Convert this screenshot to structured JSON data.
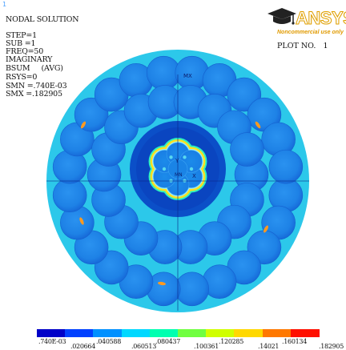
{
  "corner_mark": "1",
  "legend": {
    "lines": [
      "NODAL SOLUTION",
      "STEP=1",
      "SUB =1",
      "FREQ=50",
      "IMAGINARY",
      "BSUM     (AVG)",
      "RSYS=0",
      "SMN =.740E-03",
      "SMX =.182905"
    ]
  },
  "logo": {
    "word": "ANSYS",
    "subtitle": "Noncommercial use only"
  },
  "plot_number": "PLOT NO.   1",
  "markers": {
    "max": "MX",
    "min": "MN",
    "x_axis": "X",
    "y_axis": "Y"
  },
  "colors": {
    "background": "#ffffff",
    "strand": "#1e82e6",
    "strand_shade": "#0f60cc",
    "gap": "#2cc8ea",
    "core_ring": "#ffe020",
    "core_outer": "#2ef0c0"
  },
  "contour_scale": {
    "colors": [
      "#0000c8",
      "#0040ff",
      "#0090ff",
      "#00d8ff",
      "#00ffb0",
      "#70ff40",
      "#d0ff00",
      "#ffd800",
      "#ff7800",
      "#ff1000"
    ],
    "top_labels": [
      ".740E-03",
      ".040588",
      ".080437",
      ".120285",
      ".160134"
    ],
    "bottom_labels": [
      ".020664",
      ".060513",
      ".100361",
      ".14021",
      ".182905"
    ]
  }
}
